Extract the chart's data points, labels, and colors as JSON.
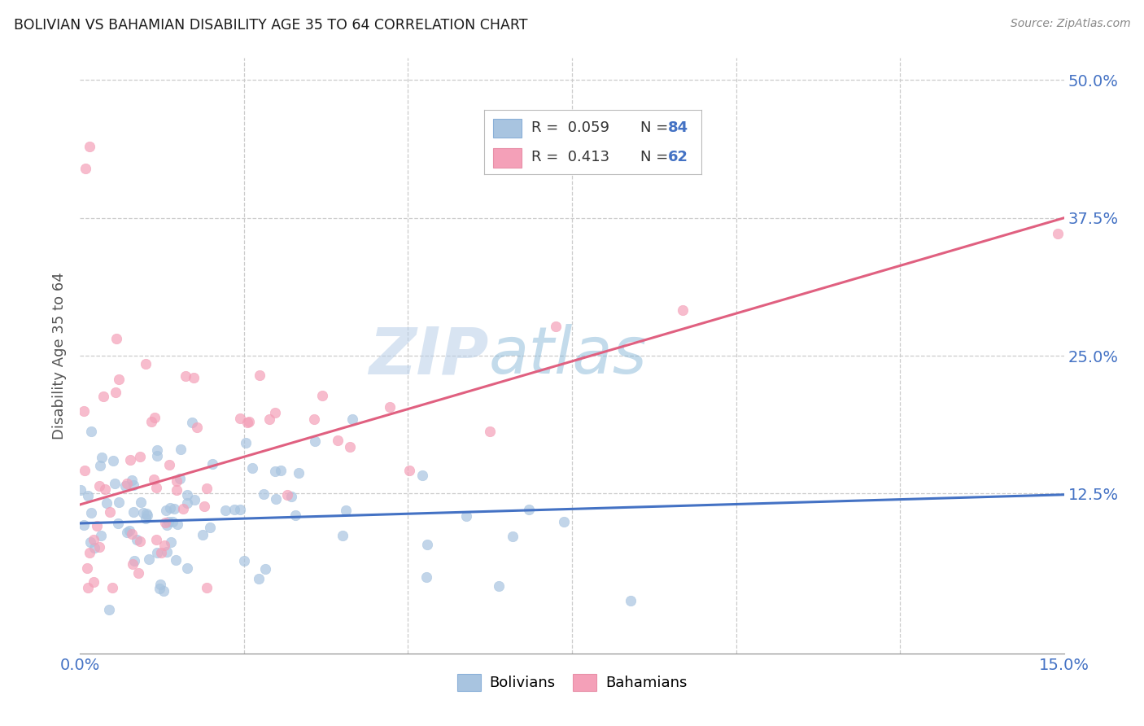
{
  "title": "BOLIVIAN VS BAHAMIAN DISABILITY AGE 35 TO 64 CORRELATION CHART",
  "source": "Source: ZipAtlas.com",
  "ylabel": "Disability Age 35 to 64",
  "bolivian_color": "#a8c4e0",
  "bahamian_color": "#f4a0b8",
  "bolivian_line_color": "#4472c4",
  "bahamian_line_color": "#e06080",
  "watermark_zip": "ZIP",
  "watermark_atlas": "atlas",
  "legend_label_1": "R = 0.059",
  "legend_n_1": "N = 84",
  "legend_label_2": "R = 0.413",
  "legend_n_2": "N = 62",
  "legend_bottom_label_1": "Bolivians",
  "legend_bottom_label_2": "Bahamians",
  "xlim": [
    0.0,
    0.15
  ],
  "ylim": [
    -0.02,
    0.52
  ],
  "x_tick_vals": [
    0.0,
    0.025,
    0.05,
    0.075,
    0.1,
    0.125,
    0.15
  ],
  "y_tick_vals": [
    0.0,
    0.125,
    0.25,
    0.375,
    0.5
  ],
  "x_tick_labels": [
    "0.0%",
    "",
    "",
    "",
    "",
    "",
    "15.0%"
  ],
  "y_tick_labels_right": [
    "",
    "12.5%",
    "25.0%",
    "37.5%",
    "50.0%"
  ],
  "grid_color": "#cccccc",
  "tick_label_color": "#4472c4",
  "ylabel_color": "#555555",
  "bol_line_y0": 0.098,
  "bol_line_y1": 0.124,
  "bah_line_y0": 0.115,
  "bah_line_y1": 0.375
}
